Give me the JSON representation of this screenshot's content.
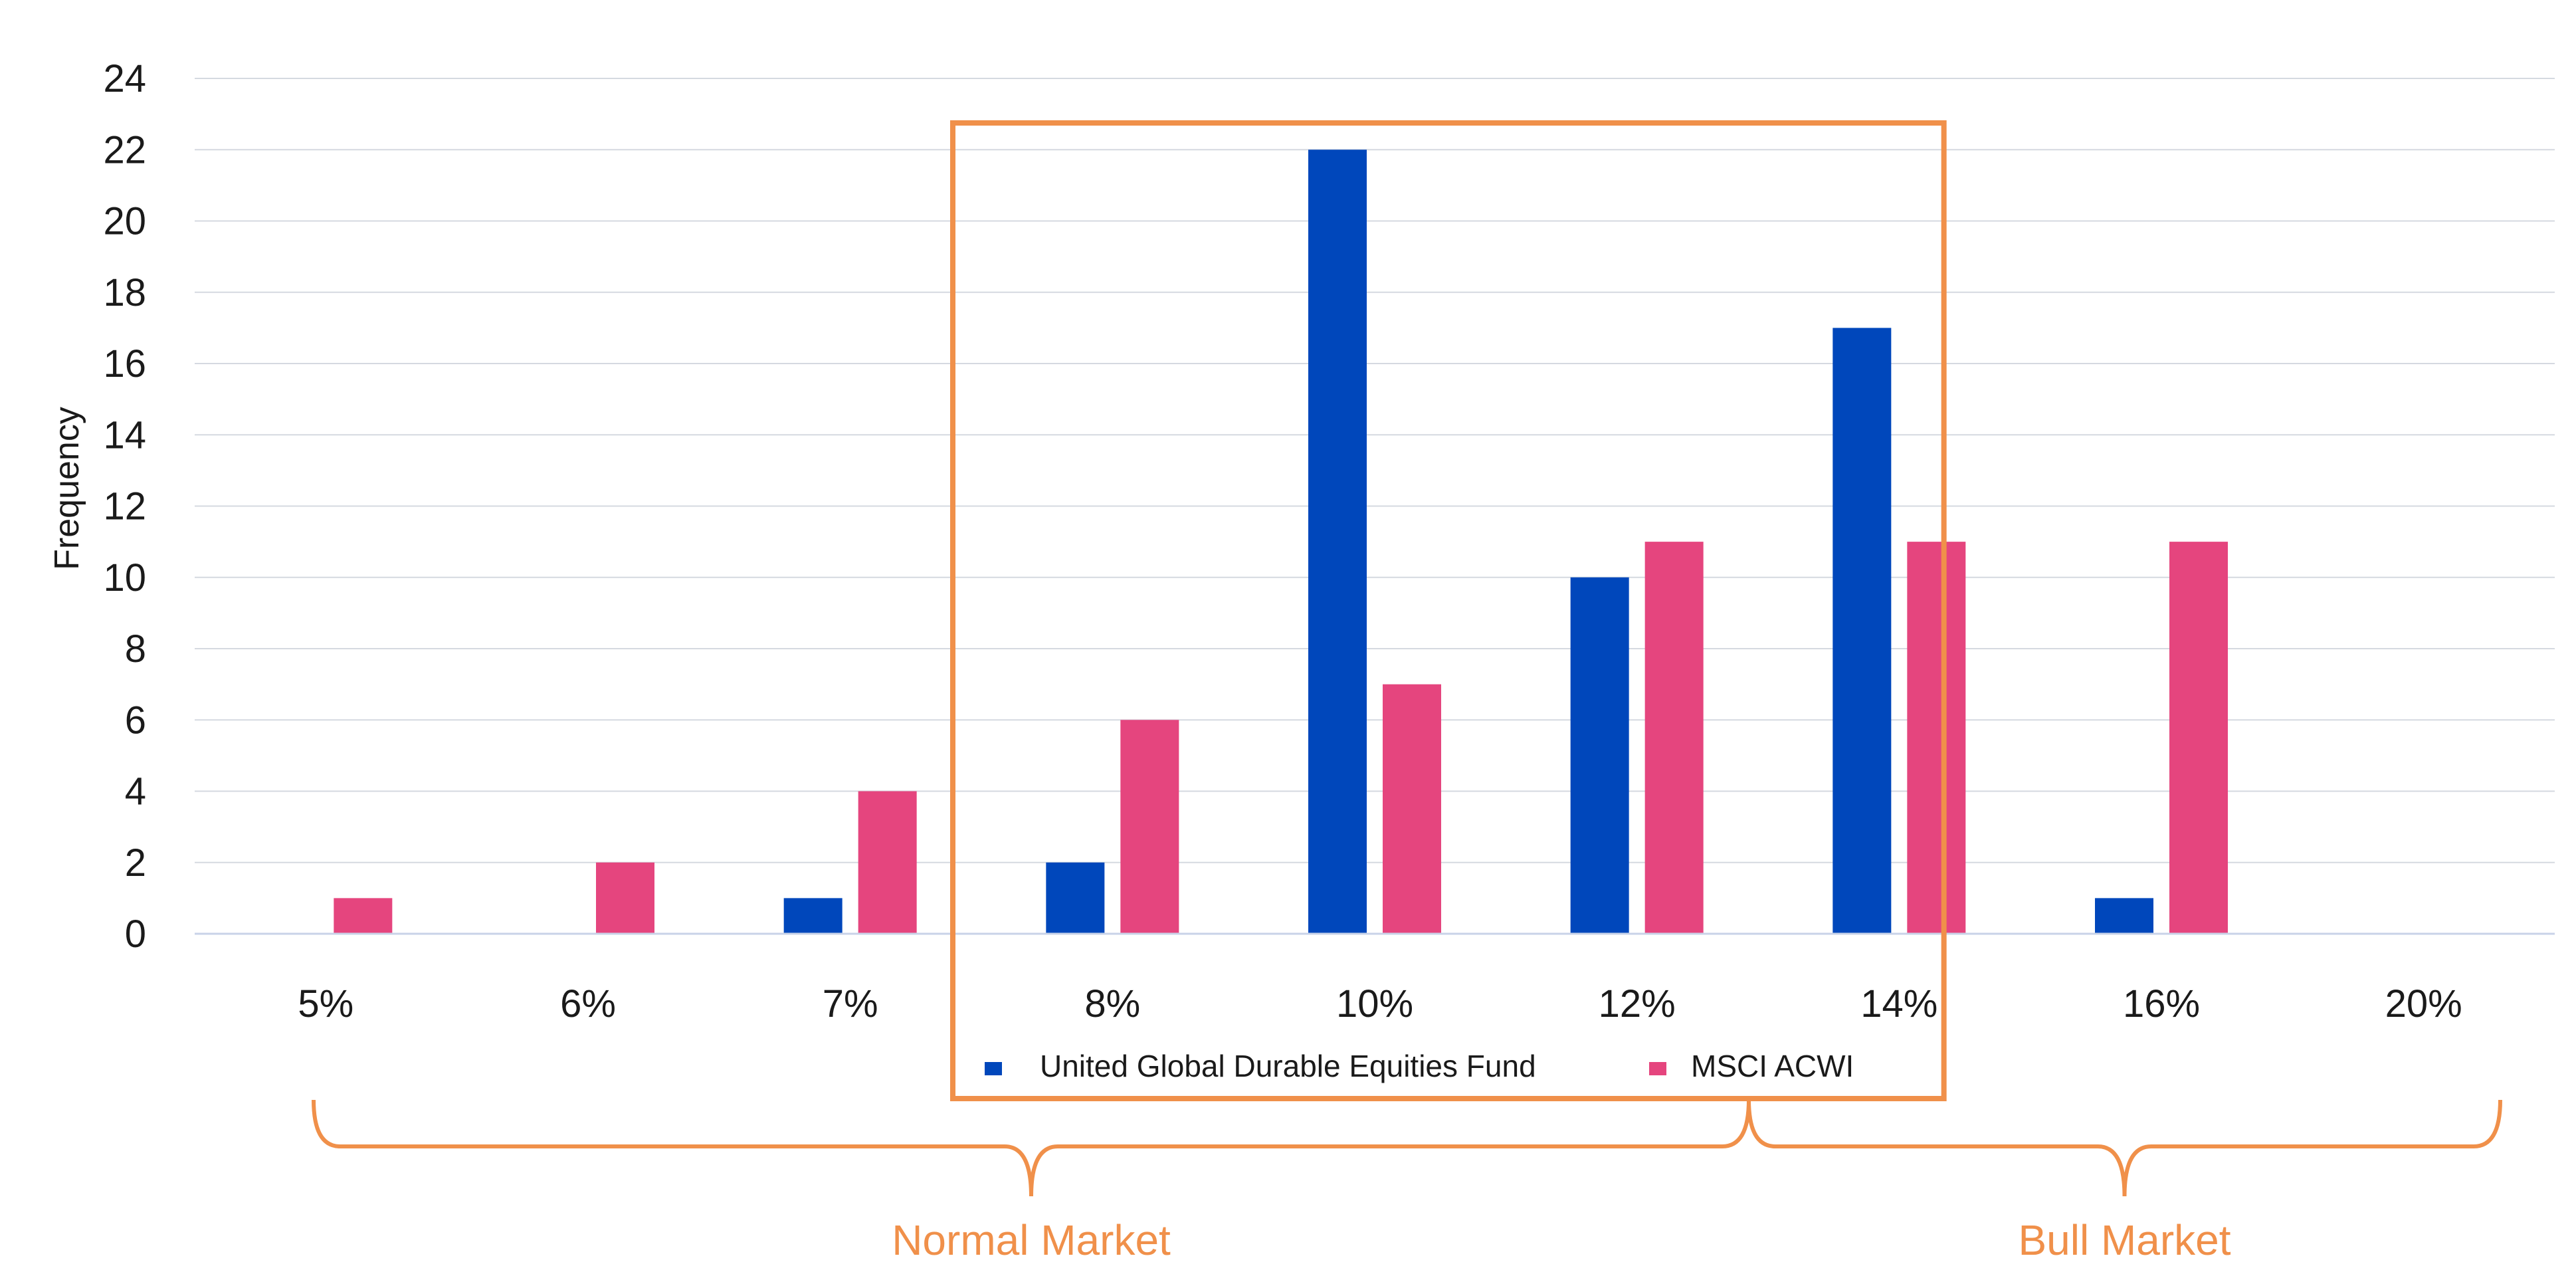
{
  "chart_data": {
    "type": "bar",
    "categories": [
      "5%",
      "6%",
      "7%",
      "8%",
      "10%",
      "12%",
      "14%",
      "16%",
      "20%"
    ],
    "series": [
      {
        "name": "United Global Durable Equities Fund",
        "color": "#0047bb",
        "values": [
          0,
          0,
          1,
          2,
          22,
          10,
          17,
          1,
          0
        ]
      },
      {
        "name": "MSCI ACWI",
        "color": "#e5457e",
        "values": [
          1,
          2,
          4,
          6,
          7,
          11,
          11,
          11,
          0
        ]
      }
    ],
    "title": "",
    "xlabel": "",
    "ylabel": "Frequency",
    "ylim": [
      0,
      24
    ],
    "yticks": [
      "0",
      "2",
      "4",
      "6",
      "8",
      "10",
      "12",
      "14",
      "16",
      "18",
      "20",
      "22",
      "24"
    ],
    "grid": true,
    "legend": "bottom-center",
    "highlight_box": {
      "from_category": "8%",
      "to_category": "14%",
      "color": "#f0904a"
    },
    "regions": [
      {
        "label": "Normal Market",
        "from_category": "5%",
        "to_category": "12%",
        "color": "#f0904a"
      },
      {
        "label": "Bull Market",
        "from_category": "14%",
        "to_category": "20%",
        "color": "#f0904a"
      }
    ]
  }
}
